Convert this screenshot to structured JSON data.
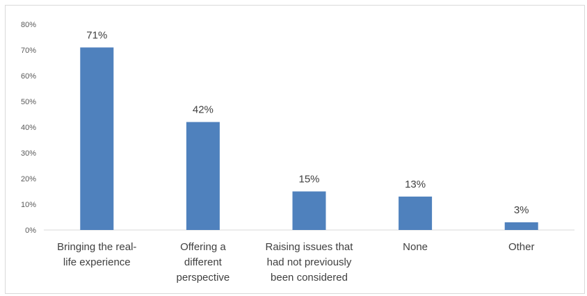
{
  "chart_data": {
    "type": "bar",
    "title": "",
    "xlabel": "",
    "ylabel": "",
    "categories": [
      [
        "Bringing the real-",
        "life experience"
      ],
      [
        "Offering a",
        "different",
        "perspective"
      ],
      [
        "Raising issues that",
        "had not previously",
        "been considered"
      ],
      [
        "None"
      ],
      [
        "Other"
      ]
    ],
    "values": [
      71,
      42,
      15,
      13,
      3
    ],
    "data_labels": [
      "71%",
      "42%",
      "15%",
      "13%",
      "3%"
    ],
    "ylim": [
      0,
      80
    ],
    "yticks": [
      0,
      10,
      20,
      30,
      40,
      50,
      60,
      70,
      80
    ],
    "ytick_labels": [
      "0%",
      "10%",
      "20%",
      "30%",
      "40%",
      "50%",
      "60%",
      "70%",
      "80%"
    ],
    "grid": false,
    "legend": "none",
    "bar_color": "#4f81bd",
    "axis_color": "#d9d9d9"
  }
}
